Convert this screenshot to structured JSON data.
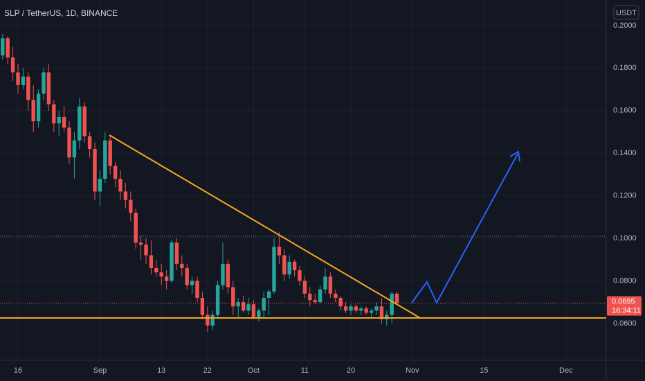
{
  "chart_data": {
    "type": "candlestick",
    "title": "SLP / TetherUS, 1D, BINANCE",
    "axis_unit": "USDT",
    "countdown": "16:34:11",
    "categories": [
      null,
      null,
      null,
      "16",
      null,
      null,
      null,
      null,
      null,
      null,
      null,
      null,
      null,
      null,
      null,
      null,
      null,
      null,
      null,
      "Sep",
      null,
      null,
      null,
      null,
      null,
      null,
      null,
      null,
      null,
      null,
      null,
      "13",
      null,
      null,
      null,
      null,
      null,
      null,
      null,
      null,
      "22",
      null,
      null,
      null,
      null,
      null,
      null,
      null,
      null,
      "Oct",
      null,
      null,
      null,
      null,
      null,
      null,
      null,
      null,
      null,
      "11",
      null,
      null,
      null,
      null,
      null,
      null,
      null,
      null,
      "20",
      null,
      null,
      null,
      null,
      null,
      null,
      null,
      null,
      null,
      null,
      null,
      "Nov",
      null,
      null,
      null,
      null,
      null,
      null,
      null,
      null,
      null,
      null,
      null,
      null,
      null,
      "15",
      null,
      null,
      null,
      null,
      null,
      null,
      null,
      null,
      null,
      null,
      null,
      null,
      null,
      null,
      null,
      "Dec",
      null,
      null,
      null,
      null,
      null,
      null,
      null
    ],
    "open": [
      0.186,
      0.194,
      0.185,
      0.178,
      0.172,
      0.176,
      0.165,
      0.155,
      0.168,
      0.178,
      0.163,
      0.154,
      0.157,
      0.152,
      0.138,
      0.146,
      0.162,
      0.148,
      0.142,
      0.122,
      0.128,
      0.146,
      0.134,
      0.128,
      0.122,
      0.118,
      0.112,
      0.098,
      0.097,
      0.092,
      0.086,
      0.084,
      0.082,
      0.08,
      0.098,
      0.088,
      0.086,
      0.078,
      0.08,
      0.072,
      0.064,
      0.059,
      0.064,
      0.078,
      0.088,
      0.077,
      0.068,
      0.07,
      0.066,
      0.069,
      0.063,
      0.066,
      0.072,
      0.075,
      0.096,
      0.092,
      0.083,
      0.089,
      0.085,
      0.08,
      0.074,
      0.071,
      0.07,
      0.076,
      0.082,
      0.074,
      0.072,
      0.068,
      0.066,
      0.068,
      0.066,
      0.067,
      0.065,
      0.066,
      0.068,
      0.062,
      0.064,
      0.074,
      null,
      null,
      null,
      null,
      null,
      null,
      null,
      null,
      null,
      null,
      null,
      null,
      null,
      null,
      null,
      null,
      null,
      null,
      null,
      null,
      null,
      null,
      null,
      null,
      null,
      null,
      null,
      null,
      null,
      null,
      null,
      null,
      null,
      null,
      null,
      null,
      null,
      null,
      null,
      null
    ],
    "high": [
      0.196,
      0.195,
      0.19,
      0.182,
      0.18,
      0.178,
      0.172,
      0.17,
      0.18,
      0.182,
      0.165,
      0.16,
      0.162,
      0.155,
      0.15,
      0.166,
      0.164,
      0.15,
      0.145,
      0.132,
      0.15,
      0.148,
      0.136,
      0.132,
      0.126,
      0.122,
      0.114,
      0.101,
      0.1,
      0.099,
      0.09,
      0.088,
      0.085,
      0.099,
      0.1,
      0.092,
      0.088,
      0.082,
      0.082,
      0.075,
      0.068,
      0.066,
      0.08,
      0.098,
      0.09,
      0.08,
      0.072,
      0.073,
      0.072,
      0.071,
      0.067,
      0.075,
      0.076,
      0.1,
      0.103,
      0.095,
      0.092,
      0.09,
      0.087,
      0.082,
      0.077,
      0.074,
      0.078,
      0.086,
      0.084,
      0.076,
      0.073,
      0.07,
      0.069,
      0.069,
      0.068,
      0.068,
      0.067,
      0.07,
      0.072,
      0.066,
      0.075,
      0.075,
      null,
      null,
      null,
      null,
      null,
      null,
      null,
      null,
      null,
      null,
      null,
      null,
      null,
      null,
      null,
      null,
      null,
      null,
      null,
      null,
      null,
      null,
      null,
      null,
      null,
      null,
      null,
      null,
      null,
      null,
      null,
      null,
      null,
      null,
      null,
      null,
      null,
      null,
      null,
      null
    ],
    "low": [
      0.184,
      0.182,
      0.174,
      0.168,
      0.17,
      0.16,
      0.15,
      0.152,
      0.165,
      0.16,
      0.15,
      0.148,
      0.15,
      0.135,
      0.128,
      0.142,
      0.145,
      0.138,
      0.118,
      0.115,
      0.126,
      0.13,
      0.124,
      0.118,
      0.114,
      0.108,
      0.095,
      0.09,
      0.088,
      0.083,
      0.082,
      0.078,
      0.076,
      0.079,
      0.085,
      0.082,
      0.076,
      0.074,
      0.07,
      0.062,
      0.056,
      0.057,
      0.062,
      0.076,
      0.074,
      0.064,
      0.063,
      0.065,
      0.064,
      0.062,
      0.061,
      0.062,
      0.064,
      0.074,
      0.088,
      0.08,
      0.081,
      0.082,
      0.078,
      0.072,
      0.068,
      0.069,
      0.069,
      0.074,
      0.072,
      0.07,
      0.066,
      0.065,
      0.064,
      0.065,
      0.064,
      0.064,
      0.063,
      0.064,
      0.06,
      0.059,
      0.06,
      0.069,
      null,
      null,
      null,
      null,
      null,
      null,
      null,
      null,
      null,
      null,
      null,
      null,
      null,
      null,
      null,
      null,
      null,
      null,
      null,
      null,
      null,
      null,
      null,
      null,
      null,
      null,
      null,
      null,
      null,
      null,
      null,
      null,
      null,
      null,
      null,
      null,
      null,
      null,
      null,
      null
    ],
    "close": [
      0.194,
      0.185,
      0.178,
      0.172,
      0.176,
      0.165,
      0.155,
      0.168,
      0.178,
      0.163,
      0.154,
      0.157,
      0.152,
      0.138,
      0.146,
      0.162,
      0.148,
      0.142,
      0.122,
      0.128,
      0.146,
      0.134,
      0.128,
      0.122,
      0.118,
      0.112,
      0.098,
      0.097,
      0.092,
      0.086,
      0.084,
      0.082,
      0.08,
      0.098,
      0.088,
      0.086,
      0.078,
      0.08,
      0.072,
      0.064,
      0.059,
      0.064,
      0.078,
      0.088,
      0.077,
      0.068,
      0.07,
      0.066,
      0.069,
      0.063,
      0.066,
      0.072,
      0.075,
      0.096,
      0.092,
      0.083,
      0.089,
      0.085,
      0.08,
      0.074,
      0.071,
      0.07,
      0.076,
      0.082,
      0.074,
      0.072,
      0.068,
      0.066,
      0.068,
      0.066,
      0.067,
      0.065,
      0.066,
      0.068,
      0.062,
      0.064,
      0.074,
      0.0695,
      null,
      null,
      null,
      null,
      null,
      null,
      null,
      null,
      null,
      null,
      null,
      null,
      null,
      null,
      null,
      null,
      null,
      null,
      null,
      null,
      null,
      null,
      null,
      null,
      null,
      null,
      null,
      null,
      null,
      null,
      null,
      null,
      null,
      null,
      null,
      null,
      null,
      null,
      null,
      null
    ],
    "up_color": "#26a69a",
    "down_color": "#ef5350",
    "ylim": [
      0.0427,
      0.212
    ],
    "yticks": [
      {
        "value": 0.06,
        "label": "0.0600"
      },
      {
        "value": 0.08,
        "label": "0.0800"
      },
      {
        "value": 0.1,
        "label": "0.1000"
      },
      {
        "value": 0.12,
        "label": "0.1200"
      },
      {
        "value": 0.14,
        "label": "0.1400"
      },
      {
        "value": 0.16,
        "label": "0.1600"
      },
      {
        "value": 0.18,
        "label": "0.1800"
      },
      {
        "value": 0.2,
        "label": "0.2000"
      }
    ],
    "grid": true
  }
}
